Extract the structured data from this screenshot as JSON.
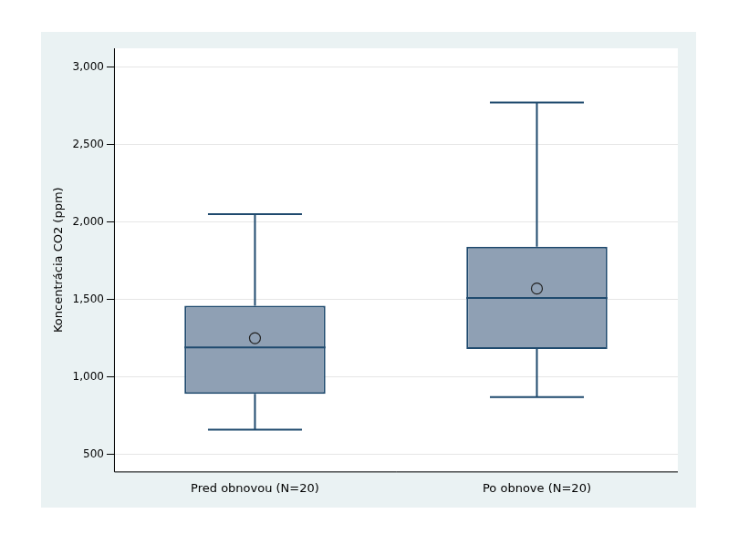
{
  "chart_data": {
    "type": "box",
    "y_label": "Koncentrácia CO2 (ppm)",
    "categories": [
      "Pred obnovou (N=20)",
      "Po obnove (N=20)"
    ],
    "stats": {
      "min": [
        660,
        870
      ],
      "q1": [
        890,
        1180
      ],
      "median": [
        1190,
        1510
      ],
      "q3": [
        1460,
        1840
      ],
      "max": [
        2050,
        2770
      ],
      "mean": [
        1250,
        1570
      ]
    },
    "color": "#8fa0b4",
    "marker": "circle",
    "ylim": [
      390,
      3120
    ],
    "yticks": [
      500,
      {
        "value": 1000,
        "label": "1,000"
      },
      {
        "value": 1500,
        "label": "1,500"
      },
      {
        "value": 2000,
        "label": "2,000"
      },
      {
        "value": 2500,
        "label": "2,500"
      },
      {
        "value": 3000,
        "label": "3,000"
      }
    ],
    "grid": true
  }
}
